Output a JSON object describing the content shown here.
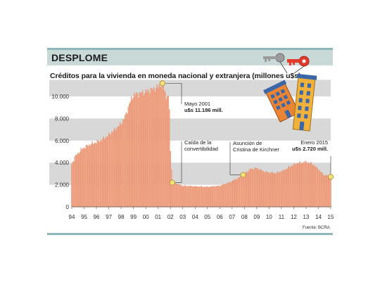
{
  "header": {
    "headline": "DESPLOME",
    "subtitle": "Créditos para la vivienda en moneda nacional y extranjera (millones u$s)"
  },
  "source": "Fuente: BCRA",
  "colors": {
    "bars": "#f0a98a",
    "bar_edge": "#e37f5a",
    "band": "#d8d8d8",
    "header_band": "#c9d9d8",
    "rule": "#8fb6b9",
    "marker": "#f2e27a",
    "marker_edge": "#b58a2c"
  },
  "chart_data": {
    "type": "bar",
    "title": "Créditos para la vivienda en moneda nacional y extranjera (millones u$s)",
    "ylim": [
      0,
      11500
    ],
    "y_ticks": [
      {
        "value": 0,
        "label": "0"
      },
      {
        "value": 2000,
        "label": "2.000"
      },
      {
        "value": 4000,
        "label": "4.000"
      },
      {
        "value": 6000,
        "label": "6.000"
      },
      {
        "value": 8000,
        "label": "8.000"
      },
      {
        "value": 10000,
        "label": "10.000"
      }
    ],
    "x_start_year": 1994,
    "x_end_year": 2015,
    "x_tick_labels": [
      "94",
      "95",
      "96",
      "97",
      "98",
      "99",
      "00",
      "01",
      "02",
      "03",
      "04",
      "05",
      "06",
      "07",
      "08",
      "09",
      "10",
      "11",
      "12",
      "13",
      "14",
      "15"
    ],
    "grid_bands": true,
    "keyframes": [
      [
        1994.0,
        3850
      ],
      [
        1994.3,
        4600
      ],
      [
        1994.9,
        5300
      ],
      [
        1995.5,
        5650
      ],
      [
        1996.0,
        5850
      ],
      [
        1996.5,
        6100
      ],
      [
        1997.0,
        6500
      ],
      [
        1997.5,
        7000
      ],
      [
        1998.0,
        7500
      ],
      [
        1998.35,
        8200
      ],
      [
        1998.7,
        9400
      ],
      [
        1999.0,
        10100
      ],
      [
        1999.5,
        10250
      ],
      [
        2000.0,
        10400
      ],
      [
        2000.5,
        10600
      ],
      [
        2001.0,
        10850
      ],
      [
        2001.35,
        11186
      ],
      [
        2001.6,
        10200
      ],
      [
        2001.9,
        9700
      ],
      [
        2002.0,
        5000
      ],
      [
        2002.15,
        2200
      ],
      [
        2002.6,
        2050
      ],
      [
        2003.0,
        1900
      ],
      [
        2004.0,
        1850
      ],
      [
        2005.0,
        1800
      ],
      [
        2006.0,
        1900
      ],
      [
        2006.8,
        2200
      ],
      [
        2007.5,
        2600
      ],
      [
        2008.0,
        3000
      ],
      [
        2008.5,
        3400
      ],
      [
        2009.0,
        3500
      ],
      [
        2009.6,
        3200
      ],
      [
        2010.0,
        3100
      ],
      [
        2010.6,
        3050
      ],
      [
        2011.2,
        3300
      ],
      [
        2011.8,
        3700
      ],
      [
        2012.3,
        3950
      ],
      [
        2013.0,
        4050
      ],
      [
        2013.5,
        3900
      ],
      [
        2014.0,
        3400
      ],
      [
        2014.4,
        2900
      ],
      [
        2015.0,
        2720
      ]
    ],
    "annotations": [
      {
        "date": 2001.35,
        "value": 11186,
        "lines": [
          "Mayo 2001"
        ],
        "bold_lines": [
          "u$s 11.186 mill."
        ]
      },
      {
        "date": 2002.15,
        "value": 2200,
        "lines": [
          "Caída de la",
          "convertibilidad"
        ],
        "bold_lines": []
      },
      {
        "date": 2007.9,
        "value": 2900,
        "lines": [
          "Asunción de",
          "Cristina de Kirchner"
        ],
        "bold_lines": []
      },
      {
        "date": 2015.0,
        "value": 2720,
        "lines": [
          "Enero 2015"
        ],
        "bold_lines": [
          "u$s 2.720 mill."
        ]
      }
    ],
    "illustration": "keys-and-buildings-icon"
  }
}
